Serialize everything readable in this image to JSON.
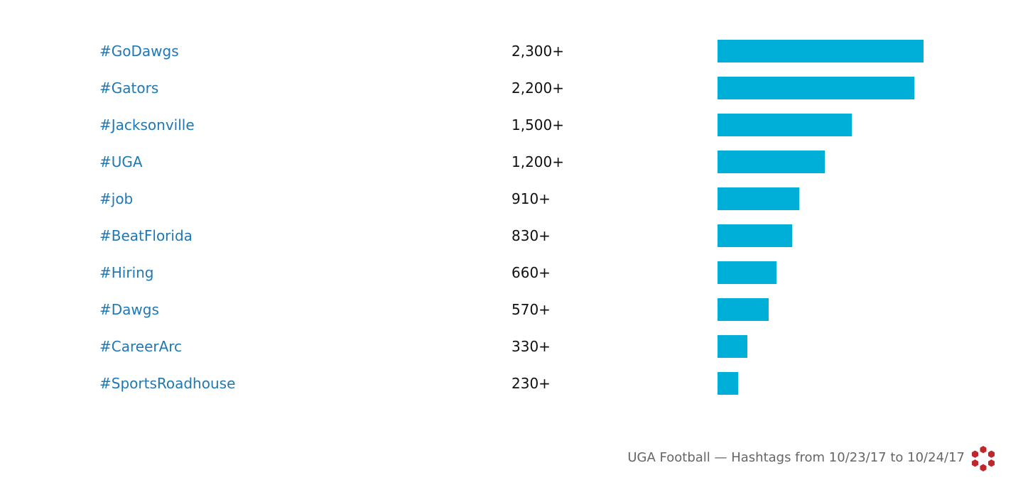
{
  "chart_data": {
    "type": "bar",
    "orientation": "horizontal",
    "categories": [
      "#GoDawgs",
      "#Gators",
      "#Jacksonville",
      "#UGA",
      "#job",
      "#BeatFlorida",
      "#Hiring",
      "#Dawgs",
      "#CareerArc",
      "#SportsRoadhouse"
    ],
    "values": [
      2300,
      2200,
      1500,
      1200,
      910,
      830,
      660,
      570,
      330,
      230
    ],
    "value_labels": [
      "2,300+",
      "2,200+",
      "1,500+",
      "1,200+",
      "910+",
      "830+",
      "660+",
      "570+",
      "330+",
      "230+"
    ],
    "xlim": [
      0,
      2300
    ],
    "grid": false,
    "bar_color": "#00afd8",
    "label_color": "#1f78b4"
  },
  "footer": {
    "caption": "UGA Football — Hashtags from 10/23/17 to 10/24/17",
    "logo_icon": "red-hexagon-cluster-logo",
    "logo_color": "#c0272d"
  }
}
